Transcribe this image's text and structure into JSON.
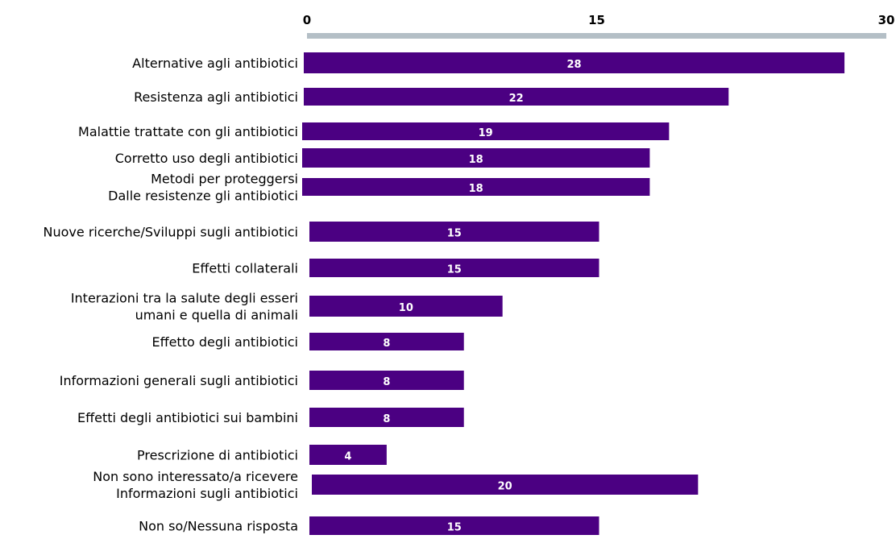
{
  "chart_data": {
    "type": "bar",
    "orientation": "horizontal",
    "title": "",
    "xlabel": "",
    "ylabel": "",
    "xlim": [
      0,
      30
    ],
    "tick_values": [
      0,
      15,
      30
    ],
    "tick_labels": [
      "0",
      "15",
      "30"
    ],
    "axis_position": "top",
    "grid": false,
    "legend": false,
    "categories": [
      [
        "Alternative agli antibiotici"
      ],
      [
        "Resistenza agli antibiotici"
      ],
      [
        "Malattie trattate con gli antibiotici"
      ],
      [
        "Corretto uso degli antibiotici"
      ],
      [
        "Metodi per proteggersi",
        "Dalle resistenze gli antibiotici"
      ],
      [
        "Nuove ricerche/Sviluppi sugli antibiotici"
      ],
      [
        "Effetti collaterali"
      ],
      [
        "Interazioni tra la salute degli esseri",
        "umani e quella di animali"
      ],
      [
        "Effetto degli antibiotici"
      ],
      [
        "Informazioni generali sugli antibiotici"
      ],
      [
        "Effetti degli antibiotici sui bambini"
      ],
      [
        "Prescrizione di antibiotici"
      ],
      [
        "Non sono interessato/a ricevere",
        "Informazioni sugli antibiotici"
      ],
      [
        "Non so/Nessuna risposta"
      ]
    ],
    "values": [
      28,
      22,
      19,
      18,
      18,
      15,
      15,
      10,
      8,
      8,
      8,
      4,
      20,
      15
    ],
    "data_labels": [
      "28",
      "22",
      "19",
      "18",
      "18",
      "15",
      "15",
      "10",
      "8",
      "8",
      "8",
      "4",
      "20",
      "15"
    ],
    "colors": {
      "bar": "#4b0082",
      "axis": "#b4bfc6",
      "data_label": "#ffffff",
      "text": "#000000"
    }
  }
}
